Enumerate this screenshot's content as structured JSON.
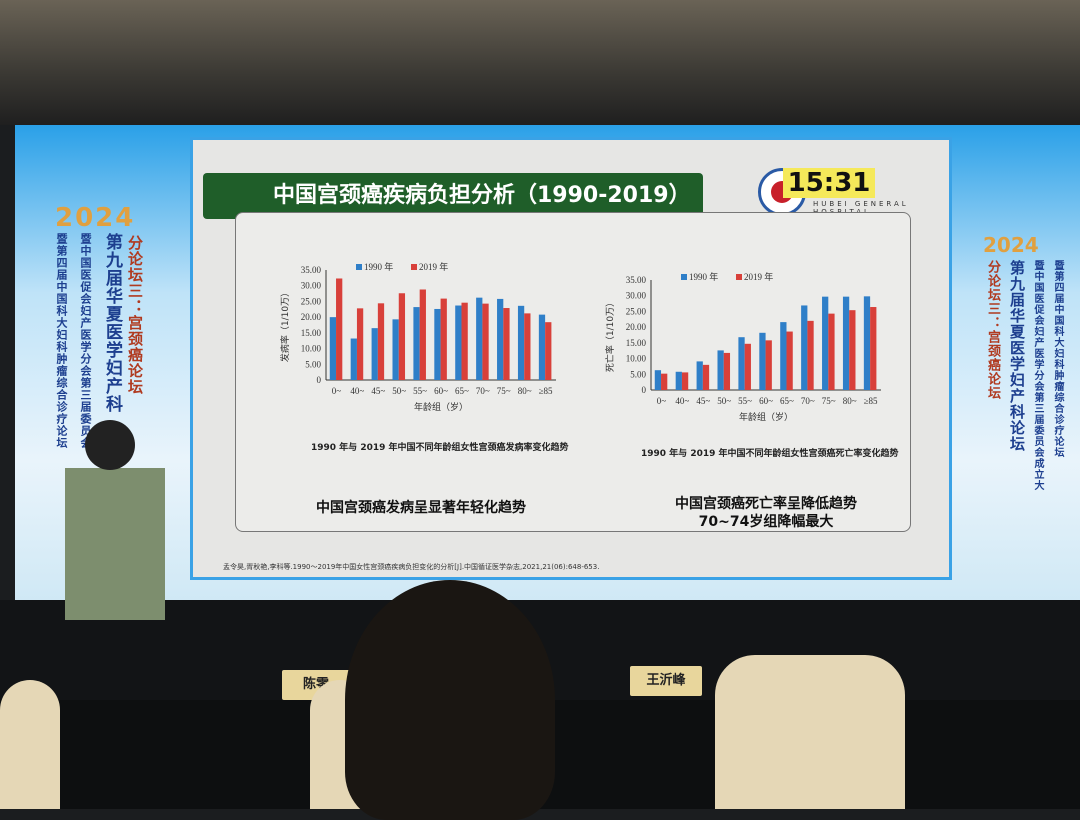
{
  "slide": {
    "title": "中国宫颈癌疾病负担分析（1990-2019）",
    "clock": "15:31",
    "hospital_name": "HUBEI GENERAL HOSPITAL",
    "conclusion_left": "中国宫颈癌发病呈显著年轻化趋势",
    "conclusion_right_1": "中国宫颈癌死亡率呈降低趋势",
    "conclusion_right_2": "70~74岁组降幅最大",
    "reference": "孟令昊,胥秋艳,李科等.1990～2019年中国女性宫颈癌疾病负担变化的分析[J].中国循证医学杂志,2021,21(06):648-653."
  },
  "banner": {
    "year": "2024",
    "line1": "分论坛三：宫颈癌论坛",
    "line2": "第九届华夏医学妇产科",
    "line3": "暨中国医促会妇产医学分会第三届委员会",
    "line4": "暨第四届中国科大妇科肿瘤综合诊疗论坛",
    "r_line1": "分论坛三：宫颈癌论坛",
    "r_line2": "第九届华夏医学妇产科论坛",
    "r_line3": "暨中国医促会妇产医学分会第三届委员会成立大",
    "r_line4": "暨第四届中国科大妇科肿瘤综合诊疗论坛"
  },
  "nameplates": {
    "left": "陈零",
    "right": "王沂峰"
  },
  "colors": {
    "series_1990": "#2f7fc8",
    "series_2019": "#d8403a",
    "title_bar": "#1f5e29"
  },
  "chart_data": [
    {
      "type": "bar",
      "title": "",
      "caption": "1990 年与 2019 年中国不同年龄组女性宫颈癌发病率变化趋势",
      "xlabel": "年龄组（岁）",
      "ylabel": "发病率（1/10万）",
      "ylim": [
        0,
        35
      ],
      "yticks": [
        "0",
        "5.00",
        "10.00",
        "15.00",
        "20.00",
        "25.00",
        "30.00",
        "35.00"
      ],
      "legend": "top",
      "categories": [
        "0~",
        "40~",
        "45~",
        "50~",
        "55~",
        "60~",
        "65~",
        "70~",
        "75~",
        "80~",
        "≥85"
      ],
      "series": [
        {
          "name": "1990 年",
          "values": [
            20.0,
            13.2,
            16.5,
            19.3,
            23.2,
            22.6,
            23.7,
            26.2,
            25.8,
            23.6,
            20.8
          ]
        },
        {
          "name": "2019 年",
          "values": [
            32.3,
            22.8,
            24.4,
            27.6,
            28.8,
            25.9,
            24.6,
            24.3,
            22.9,
            21.2,
            18.4
          ]
        }
      ]
    },
    {
      "type": "bar",
      "title": "",
      "caption": "1990 年与 2019 年中国不同年龄组女性宫颈癌死亡率变化趋势",
      "xlabel": "年龄组（岁）",
      "ylabel": "死亡率（1/10万）",
      "ylim": [
        0,
        35
      ],
      "yticks": [
        "0",
        "5.00",
        "10.00",
        "15.00",
        "20.00",
        "25.00",
        "30.00",
        "35.00"
      ],
      "legend": "top",
      "categories": [
        "0~",
        "40~",
        "45~",
        "50~",
        "55~",
        "60~",
        "65~",
        "70~",
        "75~",
        "80~",
        "≥85"
      ],
      "series": [
        {
          "name": "1990 年",
          "values": [
            6.3,
            5.8,
            9.1,
            12.6,
            16.8,
            18.2,
            21.6,
            26.9,
            29.7,
            29.7,
            29.8
          ]
        },
        {
          "name": "2019 年",
          "values": [
            5.2,
            5.6,
            8.0,
            11.8,
            14.7,
            15.8,
            18.6,
            22.0,
            24.3,
            25.4,
            26.4
          ]
        }
      ]
    }
  ]
}
